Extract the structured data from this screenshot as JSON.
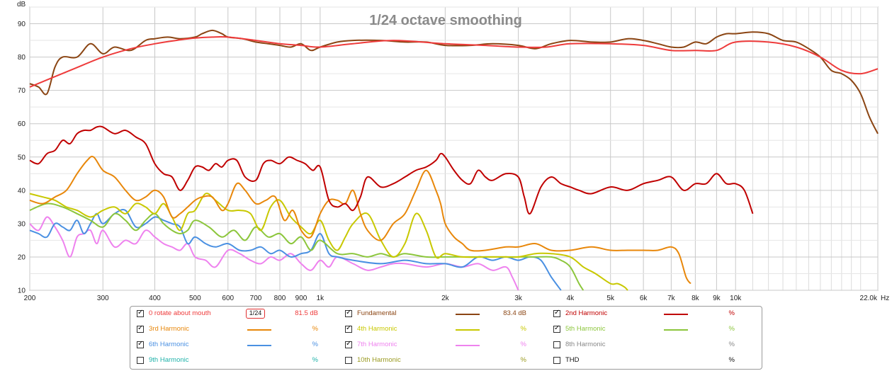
{
  "chart_data": {
    "type": "line",
    "title": "1/24 octave smoothing",
    "ylabel": "dB",
    "xunit": "Hz",
    "xscale": "log",
    "xlim": [
      200,
      22000
    ],
    "ylim": [
      10,
      95
    ],
    "grid": true,
    "ytick_labels": [
      "10",
      "20",
      "30",
      "40",
      "50",
      "60",
      "70",
      "80",
      "90"
    ],
    "yticks": [
      10,
      20,
      30,
      40,
      50,
      60,
      70,
      80,
      90
    ],
    "xtick_labels": [
      "200",
      "300",
      "400",
      "500",
      "600",
      "700",
      "800",
      "900",
      "1k",
      "2k",
      "3k",
      "4k",
      "5k",
      "6k",
      "7k",
      "8k",
      "9k",
      "10k",
      "22.0k"
    ],
    "xticks": [
      200,
      300,
      400,
      500,
      600,
      700,
      800,
      900,
      1000,
      2000,
      3000,
      4000,
      5000,
      6000,
      7000,
      8000,
      9000,
      10000,
      22000
    ],
    "series": [
      {
        "name": "0 rotate about mouth",
        "color": "#ee3b3b",
        "x": [
          200,
          250,
          300,
          350,
          400,
          450,
          500,
          550,
          600,
          700,
          800,
          900,
          1000,
          1200,
          1500,
          2000,
          2500,
          3000,
          3500,
          4000,
          5000,
          6000,
          7000,
          8000,
          9000,
          10000,
          12000,
          14000,
          16000,
          18000,
          20000,
          22000
        ],
        "y": [
          71,
          76,
          80,
          82.5,
          84,
          85,
          85.7,
          86,
          86,
          85,
          84,
          83.5,
          83,
          84,
          85,
          84,
          83.5,
          83,
          83,
          84,
          84,
          83.5,
          82,
          82,
          82,
          84.5,
          84.5,
          83,
          80,
          76,
          75,
          76.5
        ]
      },
      {
        "name": "Fundamental",
        "color": "#8b4513",
        "x": [
          200,
          210,
          220,
          230,
          240,
          260,
          280,
          300,
          320,
          350,
          380,
          400,
          430,
          460,
          500,
          520,
          550,
          580,
          600,
          650,
          700,
          750,
          800,
          850,
          900,
          950,
          1000,
          1100,
          1200,
          1400,
          1600,
          1800,
          2000,
          2300,
          2600,
          3000,
          3300,
          3600,
          4000,
          4500,
          5000,
          5500,
          6000,
          6500,
          7000,
          7500,
          8000,
          8500,
          9000,
          9500,
          10000,
          11000,
          12000,
          13000,
          14000,
          15000,
          16000,
          17000,
          18000,
          19000,
          20000,
          21000,
          22000
        ],
        "y": [
          72,
          71,
          69,
          77,
          80,
          80,
          84,
          81,
          83,
          82,
          85,
          85.5,
          86,
          85.5,
          86,
          87,
          88,
          87,
          86,
          85.5,
          84.5,
          84,
          83.5,
          83,
          84,
          82,
          83,
          84.5,
          85,
          85,
          84.5,
          84.5,
          83.5,
          83.5,
          84,
          83.5,
          82.5,
          84,
          85,
          84.5,
          84.5,
          85.5,
          85,
          84,
          83,
          83,
          84.5,
          84,
          86,
          87,
          87,
          87.5,
          87,
          85,
          84.5,
          82.5,
          80,
          76,
          75,
          73,
          69,
          62,
          57
        ]
      },
      {
        "name": "2nd Harmonic",
        "color": "#c00000",
        "x": [
          200,
          210,
          220,
          230,
          240,
          250,
          260,
          270,
          280,
          290,
          300,
          320,
          340,
          360,
          380,
          400,
          420,
          440,
          460,
          480,
          500,
          520,
          540,
          560,
          580,
          600,
          630,
          660,
          700,
          730,
          760,
          800,
          840,
          880,
          920,
          960,
          1000,
          1050,
          1100,
          1150,
          1200,
          1250,
          1300,
          1400,
          1500,
          1600,
          1700,
          1800,
          1900,
          1950,
          2000,
          2100,
          2200,
          2300,
          2400,
          2500,
          2600,
          2800,
          3000,
          3100,
          3200,
          3400,
          3600,
          3800,
          4000,
          4200,
          4500,
          5000,
          5500,
          6000,
          6500,
          7000,
          7500,
          8000,
          8500,
          9000,
          9500,
          10000,
          10500,
          11000
        ],
        "y": [
          49,
          48,
          51,
          52,
          55,
          54,
          57,
          58,
          58,
          59,
          59,
          57,
          58,
          56,
          54,
          48,
          45,
          44,
          40,
          43,
          47,
          47,
          46,
          48,
          47,
          49,
          49,
          44,
          43,
          48,
          49,
          48,
          50,
          49,
          48,
          46,
          47,
          37,
          35,
          36,
          34,
          38,
          44,
          41,
          42,
          44,
          46,
          47,
          49,
          51,
          50,
          46,
          43,
          42,
          46,
          44,
          43,
          45,
          44,
          38,
          33,
          41,
          44,
          42,
          41,
          40,
          39,
          41,
          40,
          42,
          43,
          44,
          40,
          42,
          42,
          45,
          42,
          42,
          40,
          33
        ]
      },
      {
        "name": "3rd Harmonic",
        "color": "#e8870a",
        "x": [
          200,
          215,
          230,
          245,
          260,
          275,
          285,
          300,
          320,
          340,
          360,
          380,
          400,
          420,
          440,
          460,
          480,
          500,
          520,
          550,
          580,
          600,
          630,
          660,
          700,
          740,
          780,
          820,
          860,
          900,
          950,
          1000,
          1050,
          1100,
          1150,
          1200,
          1250,
          1300,
          1400,
          1500,
          1600,
          1700,
          1800,
          1900,
          1950,
          2000,
          2100,
          2200,
          2300,
          2500,
          2800,
          3000,
          3300,
          3600,
          4000,
          4500,
          5000,
          5500,
          6000,
          6500,
          7000,
          7300,
          7600,
          7800
        ],
        "y": [
          37,
          36,
          38,
          40,
          45,
          49,
          50,
          46,
          44,
          40,
          37,
          38,
          40,
          38,
          32,
          33,
          35,
          37,
          38,
          38,
          34,
          36,
          42,
          40,
          36,
          37,
          38,
          31,
          34,
          28,
          26,
          33,
          37,
          37,
          36,
          40,
          33,
          28,
          25,
          30,
          33,
          40,
          46,
          40,
          36,
          30,
          26,
          24,
          22,
          22,
          23,
          23,
          24,
          22,
          22,
          23,
          22,
          22,
          22,
          22,
          23,
          21,
          14,
          12
        ]
      },
      {
        "name": "4th Harmonic",
        "color": "#c8c800",
        "x": [
          200,
          215,
          230,
          245,
          260,
          280,
          300,
          320,
          340,
          360,
          380,
          400,
          420,
          440,
          460,
          480,
          500,
          530,
          560,
          600,
          640,
          680,
          720,
          760,
          800,
          850,
          900,
          950,
          1000,
          1050,
          1100,
          1150,
          1200,
          1300,
          1400,
          1500,
          1600,
          1700,
          1800,
          1900,
          2000,
          2200,
          2500,
          2800,
          3000,
          3300,
          3600,
          4000,
          4300,
          4600,
          5000,
          5200,
          5400,
          5500
        ],
        "y": [
          39,
          38,
          37,
          35,
          34,
          32,
          34,
          35,
          33,
          36,
          35,
          33,
          36,
          32,
          28,
          33,
          34,
          39,
          37,
          34,
          34,
          33,
          28,
          35,
          37,
          32,
          29,
          27,
          31,
          25,
          22,
          26,
          30,
          33,
          25,
          20,
          24,
          33,
          28,
          20,
          21,
          20,
          20,
          20,
          20,
          21,
          21,
          20,
          17,
          15,
          12,
          12,
          11,
          10
        ]
      },
      {
        "name": "5th Harmonic",
        "color": "#8cc63c",
        "x": [
          200,
          220,
          240,
          260,
          280,
          300,
          320,
          340,
          360,
          380,
          400,
          420,
          440,
          460,
          480,
          500,
          540,
          580,
          620,
          660,
          700,
          750,
          800,
          850,
          900,
          950,
          1000,
          1100,
          1200,
          1300,
          1400,
          1500,
          1600,
          1800,
          2000,
          2300,
          2600,
          3000,
          3300,
          3600,
          3800,
          4000,
          4200,
          4300
        ],
        "y": [
          34,
          36,
          35,
          33,
          31,
          29,
          33,
          31,
          28,
          31,
          33,
          30,
          28,
          27,
          28,
          31,
          29,
          26,
          28,
          25,
          29,
          26,
          27,
          24,
          26,
          22,
          25,
          21,
          21,
          20,
          21,
          20,
          21,
          20,
          20,
          20,
          20,
          20,
          20,
          20,
          19,
          17,
          12,
          10
        ]
      },
      {
        "name": "6th Harmonic",
        "color": "#4a90e2",
        "x": [
          200,
          210,
          220,
          230,
          240,
          250,
          260,
          270,
          280,
          290,
          300,
          320,
          340,
          360,
          380,
          400,
          420,
          440,
          460,
          480,
          500,
          530,
          560,
          600,
          640,
          680,
          720,
          760,
          800,
          850,
          900,
          950,
          1000,
          1050,
          1100,
          1200,
          1400,
          1600,
          1800,
          2000,
          2200,
          2400,
          2600,
          2800,
          3000,
          3200,
          3400,
          3600,
          3800
        ],
        "y": [
          28,
          27,
          26,
          30,
          29,
          28,
          31,
          27,
          30,
          33,
          30,
          33,
          34,
          29,
          30,
          32,
          31,
          30,
          29,
          24,
          26,
          24,
          23,
          24,
          22,
          22,
          23,
          21,
          22,
          20,
          21,
          22,
          27,
          21,
          20,
          19,
          18,
          19,
          18,
          18,
          17,
          20,
          19,
          20,
          19,
          20,
          19,
          14,
          10
        ]
      },
      {
        "name": "7th Harmonic",
        "color": "#ee82ee",
        "x": [
          200,
          210,
          220,
          230,
          240,
          250,
          260,
          270,
          280,
          290,
          300,
          320,
          340,
          360,
          380,
          400,
          420,
          440,
          460,
          480,
          500,
          530,
          560,
          600,
          640,
          680,
          720,
          760,
          800,
          850,
          900,
          950,
          1000,
          1050,
          1100,
          1200,
          1300,
          1400,
          1500,
          1600,
          1800,
          2000,
          2200,
          2400,
          2600,
          2800,
          2900,
          3000
        ],
        "y": [
          30,
          28,
          32,
          29,
          25,
          20,
          26,
          27,
          28,
          24,
          28,
          23,
          25,
          24,
          28,
          26,
          24,
          23,
          22,
          24,
          20,
          19,
          17,
          22,
          21,
          19,
          18,
          20,
          19,
          21,
          18,
          16,
          19,
          17,
          20,
          18,
          16,
          17,
          18,
          18,
          17,
          18,
          17,
          18,
          16,
          17,
          14,
          10
        ]
      }
    ]
  },
  "legend": {
    "smoothing_label": "1/24",
    "items": [
      {
        "name": "0 rotate about mouth",
        "color": "#ee3b3b",
        "value": "81.5 dB",
        "checked": true,
        "smoothing": true
      },
      {
        "name": "Fundamental",
        "color": "#8b4513",
        "value": "83.4 dB",
        "checked": true
      },
      {
        "name": "2nd Harmonic",
        "color": "#c00000",
        "value": "%",
        "checked": true
      },
      {
        "name": "3rd Harmonic",
        "color": "#e8870a",
        "value": "%",
        "checked": true
      },
      {
        "name": "4th Harmonic",
        "color": "#c8c800",
        "value": "%",
        "checked": true
      },
      {
        "name": "5th Harmonic",
        "color": "#8cc63c",
        "value": "%",
        "checked": true
      },
      {
        "name": "6th Harmonic",
        "color": "#4a90e2",
        "value": "%",
        "checked": true
      },
      {
        "name": "7th Harmonic",
        "color": "#ee82ee",
        "value": "%",
        "checked": true
      },
      {
        "name": "8th Harmonic",
        "color": "#888888",
        "value": "%",
        "checked": false
      },
      {
        "name": "9th Harmonic",
        "color": "#20b2aa",
        "value": "%",
        "checked": false
      },
      {
        "name": "10th Harmonic",
        "color": "#9a9a20",
        "value": "%",
        "checked": false
      },
      {
        "name": "THD",
        "color": "#111111",
        "value": "%",
        "checked": false
      }
    ]
  }
}
